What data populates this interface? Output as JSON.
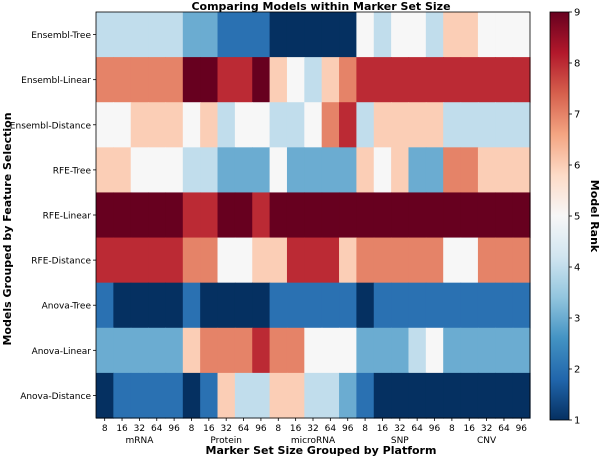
{
  "chart_data": {
    "type": "heatmap",
    "title": "Comparing Models within Marker Set Size",
    "xlabel": "Marker Set Size Grouped by Platform",
    "ylabel": "Models Grouped by Feature Selection",
    "colorbar_label": "Model Rank",
    "colorbar_ticks": [
      "1",
      "2",
      "3",
      "4",
      "5",
      "6",
      "7",
      "8",
      "9"
    ],
    "value_range": [
      1,
      9
    ],
    "x_ticks": [
      "8",
      "16",
      "32",
      "64",
      "96",
      "8",
      "16",
      "32",
      "64",
      "96",
      "8",
      "16",
      "32",
      "64",
      "96",
      "8",
      "16",
      "32",
      "64",
      "96",
      "8",
      "16",
      "32",
      "64",
      "96"
    ],
    "platforms": [
      "mRNA",
      "Protein",
      "microRNA",
      "SNP",
      "CNV"
    ],
    "rows": [
      "Ensembl-Tree",
      "Ensembl-Linear",
      "Ensembl-Distance",
      "RFE-Tree",
      "RFE-Linear",
      "RFE-Distance",
      "Anova-Tree",
      "Anova-Linear",
      "Anova-Distance"
    ],
    "values": [
      [
        4,
        4,
        4,
        4,
        4,
        3,
        3,
        2,
        2,
        2,
        1,
        1,
        1,
        1,
        1,
        5,
        4,
        5,
        5,
        4,
        6,
        6,
        5,
        5,
        5
      ],
      [
        7,
        7,
        7,
        7,
        7,
        9,
        9,
        8,
        8,
        9,
        6,
        5,
        4,
        6,
        7,
        8,
        8,
        8,
        8,
        8,
        8,
        8,
        8,
        8,
        8
      ],
      [
        5,
        5,
        6,
        6,
        6,
        5,
        6,
        4,
        5,
        5,
        4,
        4,
        5,
        7,
        8,
        4,
        6,
        6,
        6,
        6,
        4,
        4,
        4,
        4,
        4
      ],
      [
        6,
        6,
        5,
        5,
        5,
        4,
        4,
        3,
        3,
        3,
        5,
        3,
        3,
        3,
        3,
        6,
        5,
        6,
        3,
        3,
        7,
        7,
        6,
        6,
        6
      ],
      [
        9,
        9,
        9,
        9,
        9,
        8,
        8,
        9,
        9,
        8,
        9,
        9,
        9,
        9,
        9,
        9,
        9,
        9,
        9,
        9,
        9,
        9,
        9,
        9,
        9
      ],
      [
        8,
        8,
        8,
        8,
        8,
        7,
        7,
        5,
        5,
        6,
        6,
        8,
        8,
        8,
        6,
        7,
        7,
        7,
        7,
        7,
        5,
        5,
        7,
        7,
        7
      ],
      [
        2,
        1,
        1,
        1,
        1,
        2,
        1,
        1,
        1,
        1,
        2,
        2,
        2,
        2,
        2,
        1,
        2,
        2,
        2,
        2,
        2,
        2,
        2,
        2,
        2
      ],
      [
        3,
        3,
        3,
        3,
        3,
        6,
        7,
        7,
        7,
        8,
        7,
        7,
        5,
        5,
        5,
        3,
        3,
        3,
        4,
        5,
        3,
        3,
        3,
        3,
        3
      ],
      [
        1,
        2,
        2,
        2,
        2,
        1,
        2,
        6,
        4,
        4,
        6,
        6,
        4,
        4,
        3,
        2,
        1,
        1,
        1,
        1,
        1,
        1,
        1,
        1,
        1
      ]
    ],
    "colormap": "RdBu_r",
    "colormap_stops": [
      "#053061",
      "#2166ac",
      "#4393c3",
      "#92c5de",
      "#d1e5f0",
      "#f7f7f7",
      "#fddbc7",
      "#f4a582",
      "#d6604d",
      "#b2182b",
      "#67001f"
    ]
  }
}
